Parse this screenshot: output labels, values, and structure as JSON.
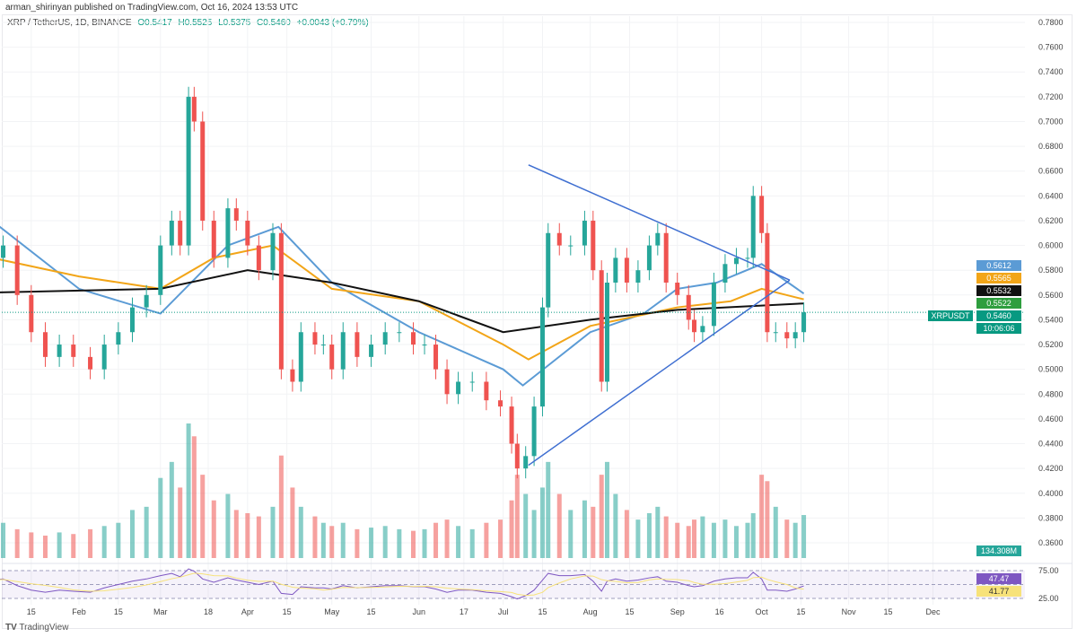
{
  "header": {
    "published": "arman_shirinyan published on TradingView.com, Oct 16, 2024 13:53 UTC",
    "symbol": "XRP / TetherUS, 1D, BINANCE",
    "open": "O0.5417",
    "high": "H0.5525",
    "low": "L0.5375",
    "close": "C0.5460",
    "change": "+0.0043 (+0.79%)"
  },
  "footer": {
    "brand": "TradingView"
  },
  "colors": {
    "up": "#26a69a",
    "down": "#ef5350",
    "ma_blue": "#5b9bd5",
    "ma_orange": "#f2a518",
    "ma_black": "#111111",
    "trendline": "#3f6fd1",
    "rsi": "#7e57c2",
    "rsi_ma": "#f7e27a"
  },
  "price_tags": [
    {
      "label": "0.5612",
      "color": "#5b9bd5"
    },
    {
      "label": "0.5565",
      "color": "#f2a518"
    },
    {
      "label": "0.5532",
      "color": "#111111"
    },
    {
      "label": "0.5522",
      "color": "#2e9e3e"
    }
  ],
  "last_price": {
    "symbol": "XRPUSDT",
    "price": "0.5460",
    "countdown": "10:06:06",
    "color": "#089981"
  },
  "volume_tag": "134.308M",
  "rsi_tags": {
    "rsi": "47.47",
    "rsi_ma": "41.77",
    "upper": "75.00",
    "lower": "25.00"
  },
  "chart_data": {
    "type": "candlestick",
    "y_ticks": [
      "0.7800",
      "0.7600",
      "0.7400",
      "0.7200",
      "0.7000",
      "0.6800",
      "0.6600",
      "0.6400",
      "0.6200",
      "0.6000",
      "0.5800",
      "0.5600",
      "0.5400",
      "0.5200",
      "0.5000",
      "0.4800",
      "0.4600",
      "0.4400",
      "0.4200",
      "0.4000",
      "0.3800",
      "0.3600"
    ],
    "ylim": [
      0.36,
      0.78
    ],
    "x_ticks": [
      {
        "d": "2024-01-15",
        "t": "15"
      },
      {
        "d": "2024-02-01",
        "t": "Feb"
      },
      {
        "d": "2024-02-15",
        "t": "15"
      },
      {
        "d": "2024-03-01",
        "t": "Mar"
      },
      {
        "d": "2024-03-18",
        "t": "18"
      },
      {
        "d": "2024-04-01",
        "t": "Apr"
      },
      {
        "d": "2024-04-15",
        "t": "15"
      },
      {
        "d": "2024-05-01",
        "t": "May"
      },
      {
        "d": "2024-05-15",
        "t": "15"
      },
      {
        "d": "2024-06-01",
        "t": "Jun"
      },
      {
        "d": "2024-06-17",
        "t": "17"
      },
      {
        "d": "2024-07-01",
        "t": "Jul"
      },
      {
        "d": "2024-07-15",
        "t": "15"
      },
      {
        "d": "2024-08-01",
        "t": "Aug"
      },
      {
        "d": "2024-08-15",
        "t": "15"
      },
      {
        "d": "2024-09-01",
        "t": "Sep"
      },
      {
        "d": "2024-09-16",
        "t": "16"
      },
      {
        "d": "2024-10-01",
        "t": "Oct"
      },
      {
        "d": "2024-10-15",
        "t": "15"
      },
      {
        "d": "2024-11-01",
        "t": "Nov"
      },
      {
        "d": "2024-11-15",
        "t": "15"
      },
      {
        "d": "2024-12-01",
        "t": "Dec"
      }
    ],
    "closes": [
      [
        "2024-01-01",
        0.59
      ],
      [
        "2024-01-05",
        0.6
      ],
      [
        "2024-01-10",
        0.56
      ],
      [
        "2024-01-15",
        0.53
      ],
      [
        "2024-01-20",
        0.51
      ],
      [
        "2024-01-25",
        0.52
      ],
      [
        "2024-01-30",
        0.51
      ],
      [
        "2024-02-05",
        0.5
      ],
      [
        "2024-02-10",
        0.52
      ],
      [
        "2024-02-15",
        0.53
      ],
      [
        "2024-02-20",
        0.55
      ],
      [
        "2024-02-25",
        0.56
      ],
      [
        "2024-03-01",
        0.6
      ],
      [
        "2024-03-05",
        0.62
      ],
      [
        "2024-03-08",
        0.6
      ],
      [
        "2024-03-11",
        0.72
      ],
      [
        "2024-03-13",
        0.7
      ],
      [
        "2024-03-16",
        0.62
      ],
      [
        "2024-03-20",
        0.59
      ],
      [
        "2024-03-25",
        0.63
      ],
      [
        "2024-03-28",
        0.62
      ],
      [
        "2024-04-01",
        0.6
      ],
      [
        "2024-04-05",
        0.58
      ],
      [
        "2024-04-10",
        0.61
      ],
      [
        "2024-04-13",
        0.5
      ],
      [
        "2024-04-17",
        0.49
      ],
      [
        "2024-04-20",
        0.53
      ],
      [
        "2024-04-25",
        0.52
      ],
      [
        "2024-04-28",
        0.52
      ],
      [
        "2024-05-01",
        0.5
      ],
      [
        "2024-05-05",
        0.53
      ],
      [
        "2024-05-10",
        0.51
      ],
      [
        "2024-05-15",
        0.52
      ],
      [
        "2024-05-20",
        0.53
      ],
      [
        "2024-05-25",
        0.53
      ],
      [
        "2024-05-30",
        0.52
      ],
      [
        "2024-06-03",
        0.52
      ],
      [
        "2024-06-07",
        0.5
      ],
      [
        "2024-06-11",
        0.48
      ],
      [
        "2024-06-15",
        0.49
      ],
      [
        "2024-06-20",
        0.49
      ],
      [
        "2024-06-25",
        0.475
      ],
      [
        "2024-06-30",
        0.47
      ],
      [
        "2024-07-04",
        0.44
      ],
      [
        "2024-07-06",
        0.42
      ],
      [
        "2024-07-09",
        0.43
      ],
      [
        "2024-07-12",
        0.47
      ],
      [
        "2024-07-15",
        0.55
      ],
      [
        "2024-07-17",
        0.61
      ],
      [
        "2024-07-21",
        0.6
      ],
      [
        "2024-07-25",
        0.6
      ],
      [
        "2024-07-30",
        0.62
      ],
      [
        "2024-08-02",
        0.58
      ],
      [
        "2024-08-05",
        0.49
      ],
      [
        "2024-08-07",
        0.57
      ],
      [
        "2024-08-10",
        0.59
      ],
      [
        "2024-08-14",
        0.57
      ],
      [
        "2024-08-18",
        0.58
      ],
      [
        "2024-08-22",
        0.6
      ],
      [
        "2024-08-25",
        0.61
      ],
      [
        "2024-08-28",
        0.57
      ],
      [
        "2024-09-01",
        0.56
      ],
      [
        "2024-09-05",
        0.54
      ],
      [
        "2024-09-07",
        0.53
      ],
      [
        "2024-09-10",
        0.535
      ],
      [
        "2024-09-14",
        0.57
      ],
      [
        "2024-09-18",
        0.585
      ],
      [
        "2024-09-22",
        0.59
      ],
      [
        "2024-09-26",
        0.59
      ],
      [
        "2024-09-28",
        0.64
      ],
      [
        "2024-10-01",
        0.61
      ],
      [
        "2024-10-03",
        0.53
      ],
      [
        "2024-10-06",
        0.53
      ],
      [
        "2024-10-10",
        0.525
      ],
      [
        "2024-10-13",
        0.53
      ],
      [
        "2024-10-16",
        0.546
      ]
    ],
    "moving_averages": [
      {
        "color": "#5b9bd5",
        "points": [
          [
            "2024-01-01",
            0.62
          ],
          [
            "2024-02-01",
            0.565
          ],
          [
            "2024-03-01",
            0.545
          ],
          [
            "2024-03-25",
            0.6
          ],
          [
            "2024-04-12",
            0.615
          ],
          [
            "2024-05-01",
            0.57
          ],
          [
            "2024-06-01",
            0.53
          ],
          [
            "2024-07-01",
            0.5
          ],
          [
            "2024-07-08",
            0.487
          ],
          [
            "2024-08-01",
            0.53
          ],
          [
            "2024-08-20",
            0.545
          ],
          [
            "2024-09-01",
            0.565
          ],
          [
            "2024-09-15",
            0.57
          ],
          [
            "2024-10-01",
            0.585
          ],
          [
            "2024-10-16",
            0.5612
          ]
        ]
      },
      {
        "color": "#f2a518",
        "points": [
          [
            "2024-01-01",
            0.59
          ],
          [
            "2024-02-01",
            0.575
          ],
          [
            "2024-03-01",
            0.565
          ],
          [
            "2024-03-20",
            0.59
          ],
          [
            "2024-04-10",
            0.6
          ],
          [
            "2024-05-01",
            0.565
          ],
          [
            "2024-06-01",
            0.555
          ],
          [
            "2024-07-01",
            0.52
          ],
          [
            "2024-07-10",
            0.508
          ],
          [
            "2024-08-01",
            0.535
          ],
          [
            "2024-09-01",
            0.55
          ],
          [
            "2024-09-20",
            0.555
          ],
          [
            "2024-10-01",
            0.565
          ],
          [
            "2024-10-16",
            0.5565
          ]
        ]
      },
      {
        "color": "#111111",
        "points": [
          [
            "2024-01-01",
            0.562
          ],
          [
            "2024-03-01",
            0.565
          ],
          [
            "2024-04-01",
            0.58
          ],
          [
            "2024-05-01",
            0.57
          ],
          [
            "2024-06-01",
            0.555
          ],
          [
            "2024-07-01",
            0.53
          ],
          [
            "2024-08-01",
            0.54
          ],
          [
            "2024-09-01",
            0.548
          ],
          [
            "2024-10-16",
            0.5532
          ]
        ]
      }
    ],
    "trendlines": [
      [
        [
          "2024-07-10",
          0.665
        ],
        [
          "2024-10-11",
          0.572
        ]
      ],
      [
        [
          "2024-07-10",
          0.4226
        ],
        [
          "2024-10-11",
          0.572
        ]
      ]
    ],
    "volume_unit": "M",
    "volumes": [
      120,
      110,
      90,
      80,
      70,
      80,
      75,
      90,
      100,
      110,
      150,
      160,
      250,
      300,
      220,
      420,
      380,
      260,
      180,
      200,
      150,
      140,
      130,
      160,
      320,
      220,
      160,
      130,
      110,
      100,
      110,
      90,
      95,
      100,
      90,
      85,
      90,
      110,
      120,
      100,
      90,
      110,
      120,
      180,
      260,
      200,
      150,
      220,
      300,
      200,
      150,
      180,
      160,
      260,
      300,
      200,
      150,
      120,
      140,
      160,
      130,
      110,
      100,
      120,
      130,
      110,
      120,
      100,
      110,
      140,
      260,
      240,
      160,
      120,
      110,
      134.308
    ],
    "rsi_ylim": [
      0,
      100
    ],
    "rsi": [
      58,
      60,
      48,
      40,
      36,
      40,
      38,
      36,
      44,
      50,
      56,
      60,
      66,
      70,
      64,
      78,
      74,
      60,
      54,
      62,
      58,
      54,
      50,
      56,
      34,
      32,
      46,
      44,
      44,
      42,
      48,
      44,
      46,
      48,
      48,
      46,
      46,
      42,
      36,
      40,
      40,
      36,
      34,
      28,
      24,
      30,
      40,
      58,
      70,
      66,
      66,
      68,
      56,
      38,
      56,
      60,
      56,
      58,
      62,
      64,
      56,
      54,
      48,
      46,
      48,
      56,
      60,
      62,
      62,
      72,
      60,
      40,
      40,
      38,
      42,
      47.47
    ]
  }
}
